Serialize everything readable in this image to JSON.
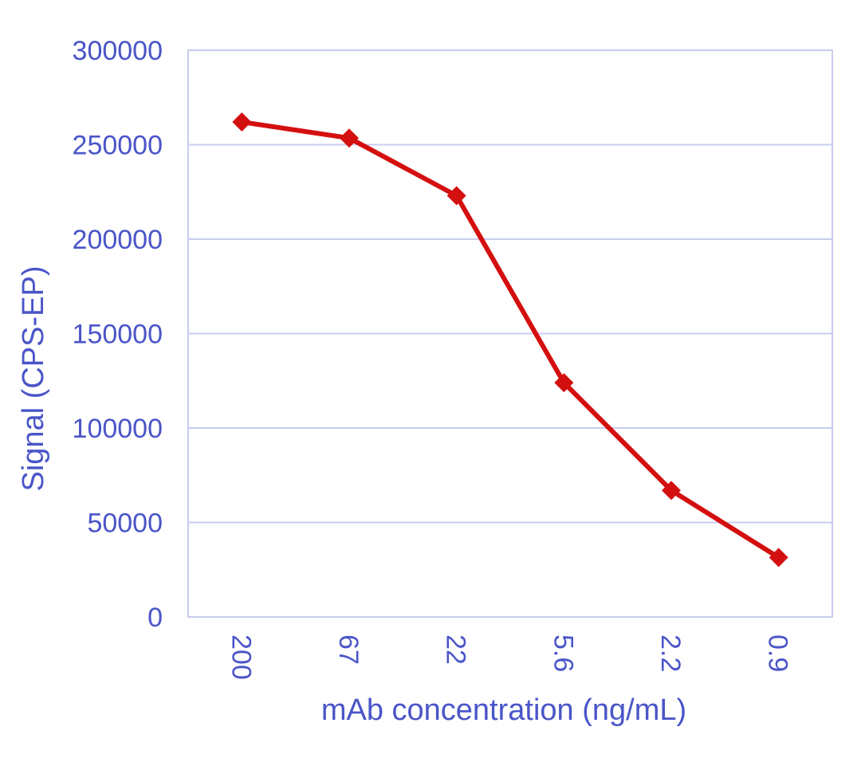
{
  "chart_data": {
    "type": "line",
    "xlabel": "mAb concentration (ng/mL)",
    "ylabel": "Signal (CPS-EP)",
    "categories": [
      "200",
      "67",
      "22",
      "5.6",
      "2.2",
      "0.9"
    ],
    "series": [
      {
        "values": [
          262000,
          253500,
          223000,
          124000,
          67000,
          31500
        ],
        "color": "#d40f0f",
        "marker": "diamond"
      }
    ],
    "ylim": [
      0,
      300000
    ],
    "yticks": [
      "0",
      "50000",
      "100000",
      "150000",
      "200000",
      "250000",
      "300000"
    ],
    "grid": true,
    "colors": {
      "text": "#4a55c8",
      "grid": "#c8cdf0",
      "line": "#d40f0f"
    }
  }
}
